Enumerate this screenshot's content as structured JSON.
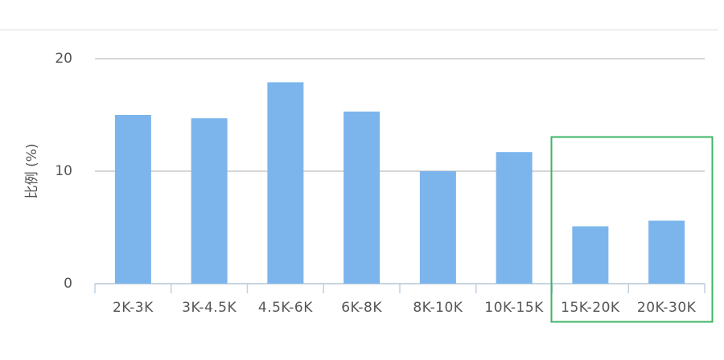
{
  "chart_data": {
    "type": "bar",
    "y_label": "比例 (%)",
    "categories": [
      "2K-3K",
      "3K-4.5K",
      "4.5K-6K",
      "6K-8K",
      "8K-10K",
      "10K-15K",
      "15K-20K",
      "20K-30K"
    ],
    "values": [
      15.0,
      14.7,
      17.9,
      15.3,
      10.0,
      11.7,
      5.1,
      5.6
    ],
    "color": "#7cb5ec",
    "ylim": [
      0,
      20
    ],
    "yticks": [
      0,
      10,
      20
    ],
    "grid": true
  }
}
